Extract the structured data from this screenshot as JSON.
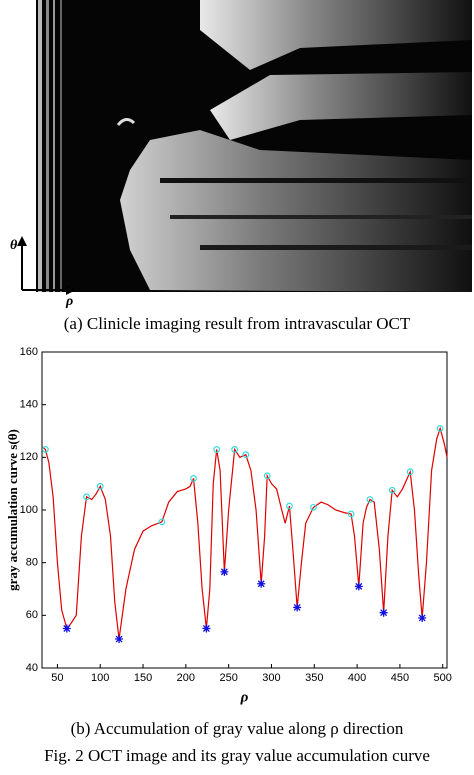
{
  "image": {
    "y_axis_label": "θ",
    "x_axis_label": "ρ"
  },
  "caption_a": "(a)  Clinicle imaging result from intravascular OCT",
  "chart_data": {
    "type": "line",
    "xlabel": "ρ",
    "ylabel": "gray accumulation curve s(θ)",
    "xlim": [
      32,
      505
    ],
    "xticks": [
      50,
      100,
      150,
      200,
      250,
      300,
      350,
      400,
      450,
      500
    ],
    "ylim": [
      40,
      160
    ],
    "yticks": [
      40,
      60,
      80,
      100,
      120,
      140,
      160
    ],
    "series": [
      {
        "color": "#e00000",
        "marker": "none",
        "x": [
          32,
          36,
          40,
          45,
          50,
          55,
          61,
          66,
          72,
          78,
          84,
          90,
          95,
          100,
          106,
          112,
          117,
          122,
          130,
          140,
          150,
          160,
          172,
          180,
          190,
          200,
          205,
          209,
          214,
          219,
          224,
          228,
          232,
          236,
          240,
          245,
          250,
          257,
          263,
          270,
          276,
          282,
          288,
          292,
          295,
          300,
          306,
          312,
          316,
          321,
          325,
          330,
          335,
          340,
          349,
          358,
          366,
          375,
          385,
          393,
          397,
          402,
          407,
          411,
          415,
          420,
          426,
          431,
          436,
          441,
          447,
          453,
          462,
          467,
          472,
          476,
          481,
          487,
          493,
          497,
          502,
          505
        ],
        "values": [
          124,
          123,
          118,
          105,
          80,
          62,
          55,
          57,
          60,
          90,
          105,
          104,
          106,
          109,
          104,
          90,
          65,
          51,
          70,
          85,
          92,
          94,
          95.5,
          103,
          107,
          108,
          109,
          112,
          95,
          70,
          55,
          70,
          110,
          123,
          115,
          76.5,
          100,
          123,
          120,
          121,
          115,
          100,
          72,
          90,
          113,
          110,
          108,
          100,
          95,
          101.5,
          85,
          63,
          80,
          95,
          101,
          103,
          102,
          100,
          99,
          98.5,
          90,
          71,
          95,
          101,
          104,
          103,
          85,
          61,
          90,
          107.5,
          105,
          108,
          114.5,
          100,
          75,
          59,
          80,
          115,
          127,
          131,
          125,
          120
        ]
      },
      {
        "color": "#33dddd",
        "marker": "circle",
        "x": [
          36,
          84,
          100,
          172,
          209,
          236,
          257,
          270,
          295,
          321,
          349,
          393,
          415,
          441,
          462,
          497
        ],
        "values": [
          123,
          105,
          109,
          95.5,
          112,
          123,
          123,
          121,
          113,
          101.5,
          101,
          98.5,
          104,
          107.5,
          114.5,
          131
        ]
      },
      {
        "color": "#1010e0",
        "marker": "star",
        "x": [
          61,
          122,
          224,
          245,
          288,
          330,
          402,
          431,
          476
        ],
        "values": [
          55,
          51,
          55,
          76.5,
          72,
          63,
          71,
          61,
          59
        ]
      }
    ]
  },
  "caption_b": "(b) Accumulation of gray value along ρ direction",
  "figure_caption": "Fig. 2 OCT image and its gray value accumulation curve"
}
